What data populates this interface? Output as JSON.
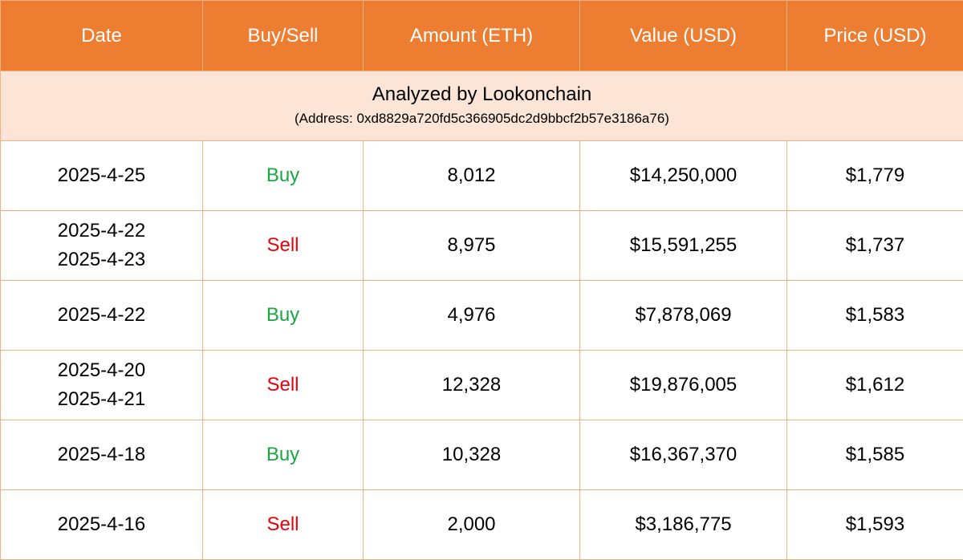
{
  "header": {
    "date": "Date",
    "buy_sell": "Buy/Sell",
    "amount": "Amount (ETH)",
    "value": "Value (USD)",
    "price": "Price (USD)"
  },
  "banner": {
    "title": "Analyzed by Lookonchain",
    "address": "(Address: 0xd8829a720fd5c366905dc2d9bbcf2b57e3186a76)"
  },
  "colors": {
    "header_bg": "#ed7d31",
    "banner_bg": "#fce4d6",
    "border": "#f4b183",
    "buy": "#1aa442",
    "sell": "#e8000b"
  },
  "rows": [
    {
      "date1": "2025-4-25",
      "date2": "",
      "side": "Buy",
      "amount": "8,012",
      "value": "$14,250,000",
      "price": "$1,779"
    },
    {
      "date1": "2025-4-22",
      "date2": "2025-4-23",
      "side": "Sell",
      "amount": "8,975",
      "value": "$15,591,255",
      "price": "$1,737"
    },
    {
      "date1": "2025-4-22",
      "date2": "",
      "side": "Buy",
      "amount": "4,976",
      "value": "$7,878,069",
      "price": "$1,583"
    },
    {
      "date1": "2025-4-20",
      "date2": "2025-4-21",
      "side": "Sell",
      "amount": "12,328",
      "value": "$19,876,005",
      "price": "$1,612"
    },
    {
      "date1": "2025-4-18",
      "date2": "",
      "side": "Buy",
      "amount": "10,328",
      "value": "$16,367,370",
      "price": "$1,585"
    },
    {
      "date1": "2025-4-16",
      "date2": "",
      "side": "Sell",
      "amount": "2,000",
      "value": "$3,186,775",
      "price": "$1,593"
    }
  ]
}
